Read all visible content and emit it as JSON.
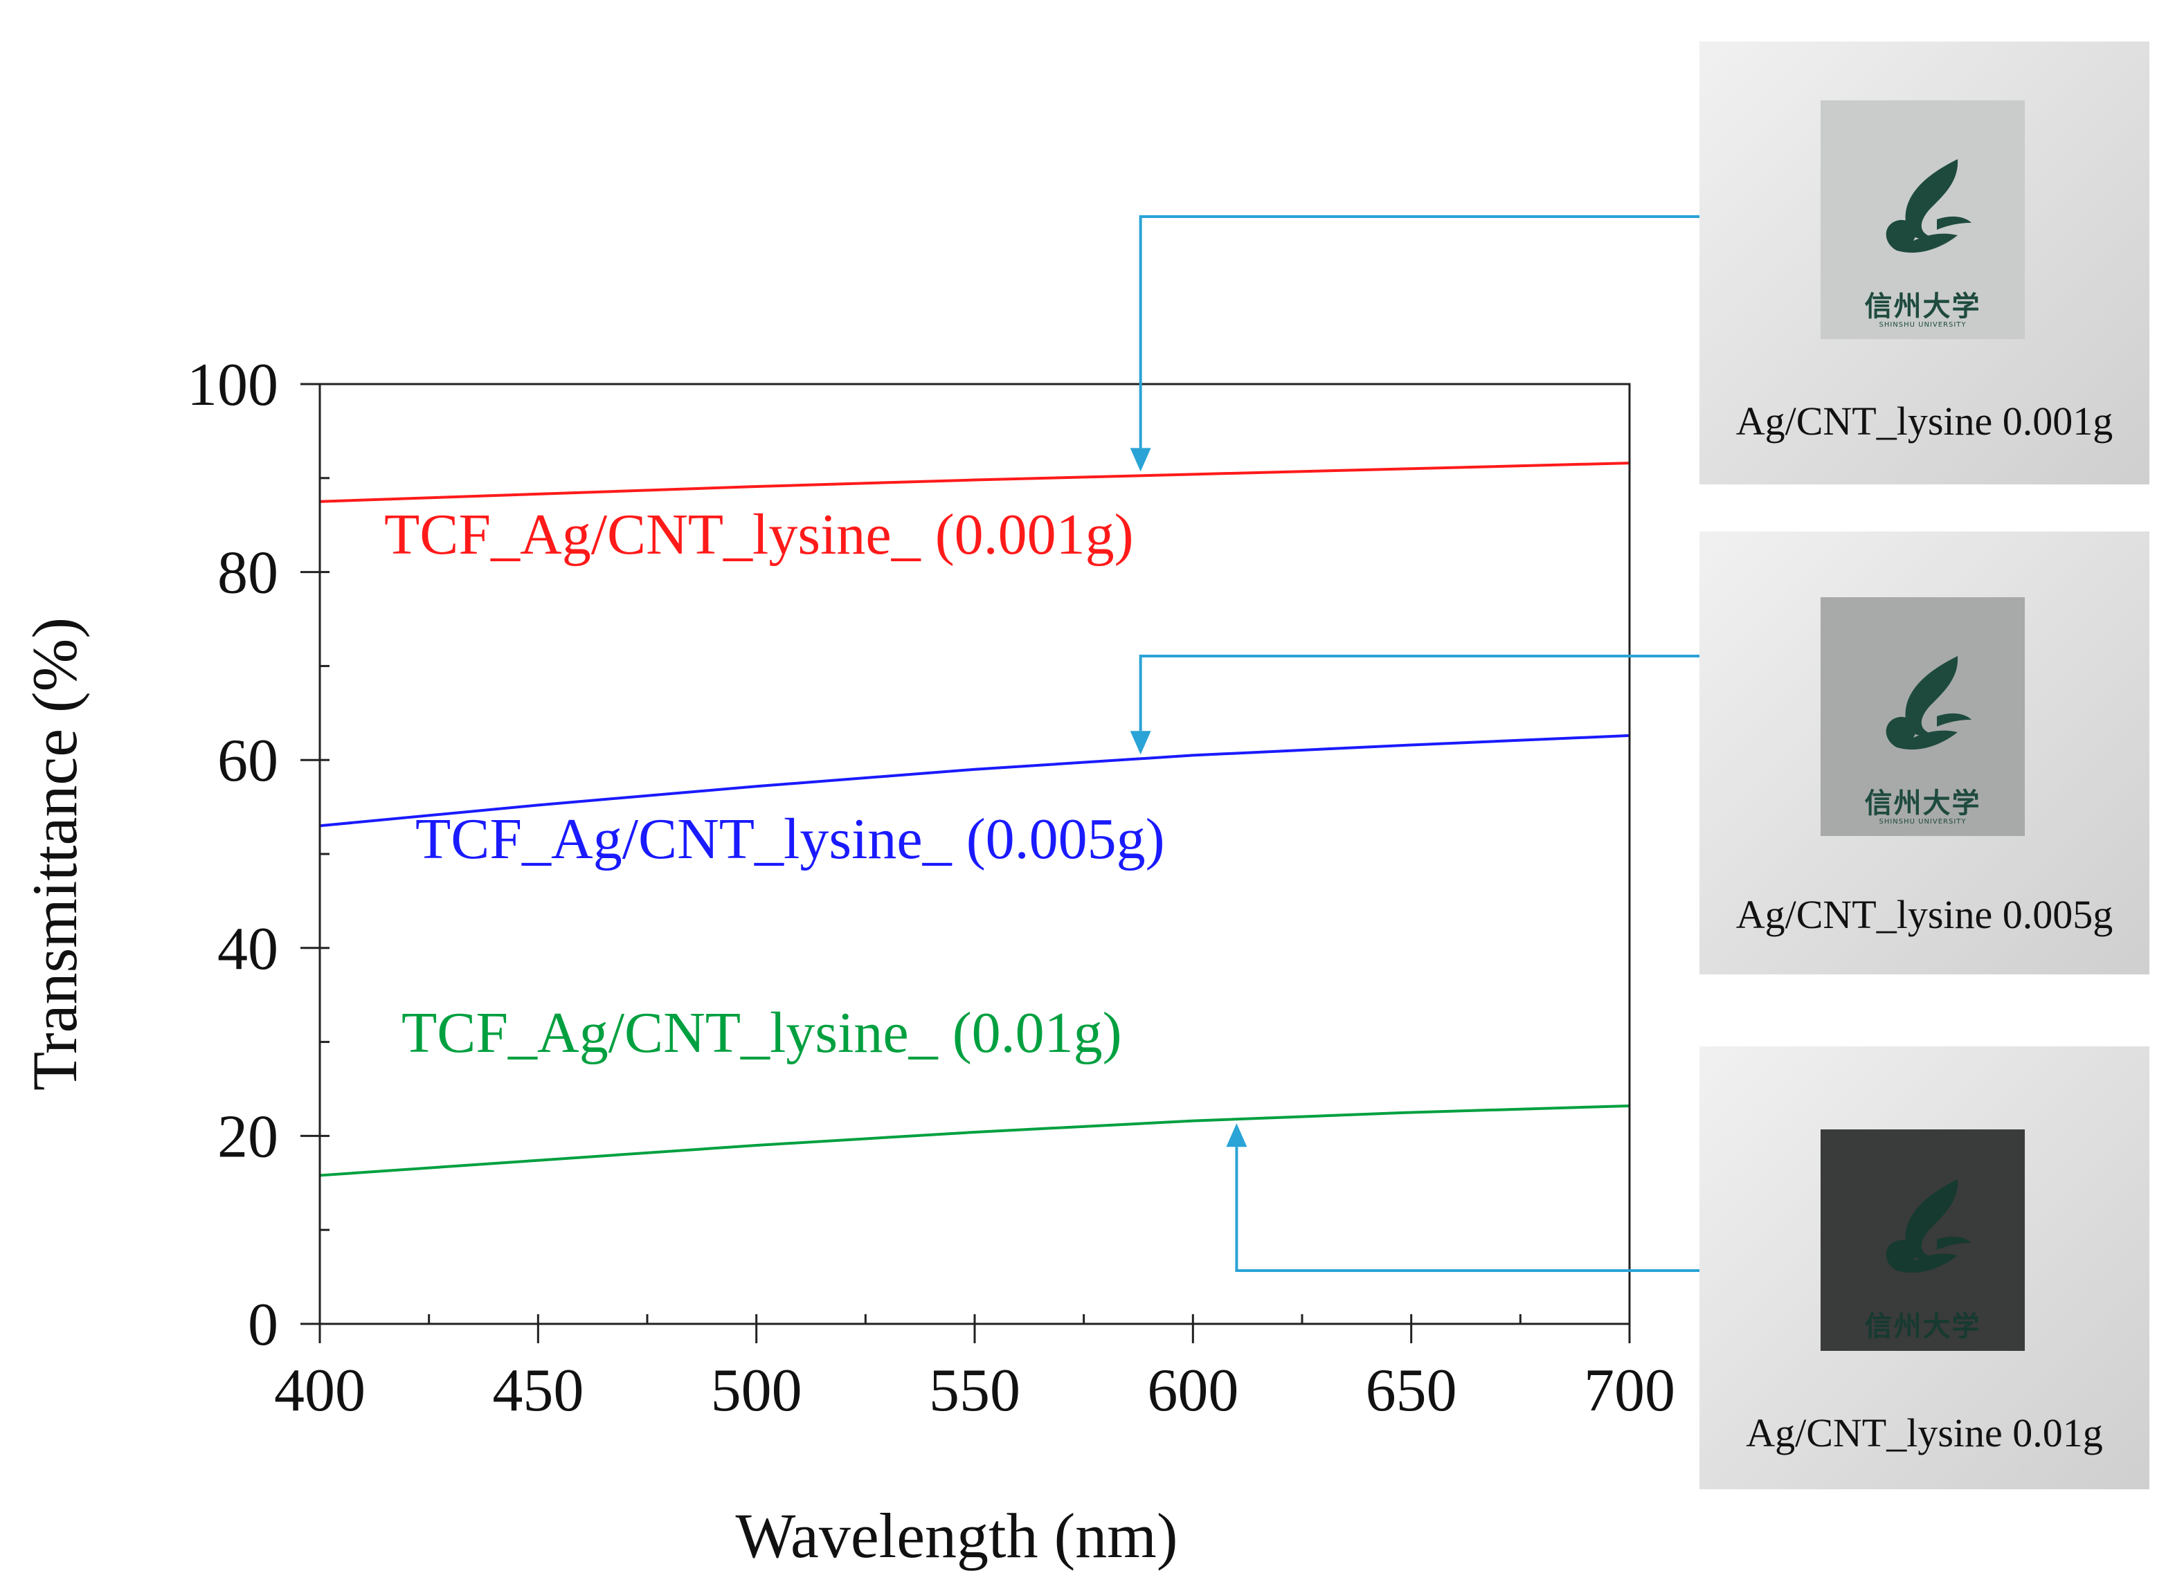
{
  "chart_data": {
    "type": "line",
    "xlabel": "Wavelength (nm)",
    "ylabel": "Transmittance (%)",
    "xlim": [
      400,
      700
    ],
    "ylim": [
      0,
      100
    ],
    "x_ticks": [
      400,
      450,
      500,
      550,
      600,
      650,
      700
    ],
    "y_ticks": [
      0,
      20,
      40,
      60,
      80,
      100
    ],
    "x_minor_step": 25,
    "y_minor_step": 10,
    "x": [
      400,
      450,
      500,
      550,
      600,
      650,
      700
    ],
    "series": [
      {
        "name": "TCF_Ag/CNT_lysine_ (0.001g)",
        "color": "#ff1a1a",
        "values": [
          87.5,
          88.3,
          89.1,
          89.8,
          90.4,
          91.0,
          91.6
        ]
      },
      {
        "name": "TCF_Ag/CNT_lysine_ (0.005g)",
        "color": "#1a1aff",
        "values": [
          53.0,
          55.2,
          57.2,
          59.0,
          60.5,
          61.6,
          62.6
        ]
      },
      {
        "name": "TCF_Ag/CNT_lysine_ (0.01g)",
        "color": "#00a040",
        "values": [
          15.8,
          17.4,
          19.0,
          20.4,
          21.6,
          22.5,
          23.2
        ]
      }
    ],
    "annotations": [
      {
        "series": 0,
        "x": 588
      },
      {
        "series": 1,
        "x": 588
      },
      {
        "series": 2,
        "x": 610
      }
    ],
    "arrow_color": "#2aa3d6"
  },
  "photos": [
    {
      "caption": "Ag/CNT_lysine 0.001g",
      "logo_text": "信州大学",
      "logo_subtext": "SHINSHU UNIVERSITY"
    },
    {
      "caption": "Ag/CNT_lysine 0.005g",
      "logo_text": "信州大学",
      "logo_subtext": "SHINSHU UNIVERSITY"
    },
    {
      "caption": "Ag/CNT_lysine 0.01g",
      "logo_text": "信州大学",
      "logo_subtext": "SHINSHU UNIVERSITY"
    }
  ]
}
